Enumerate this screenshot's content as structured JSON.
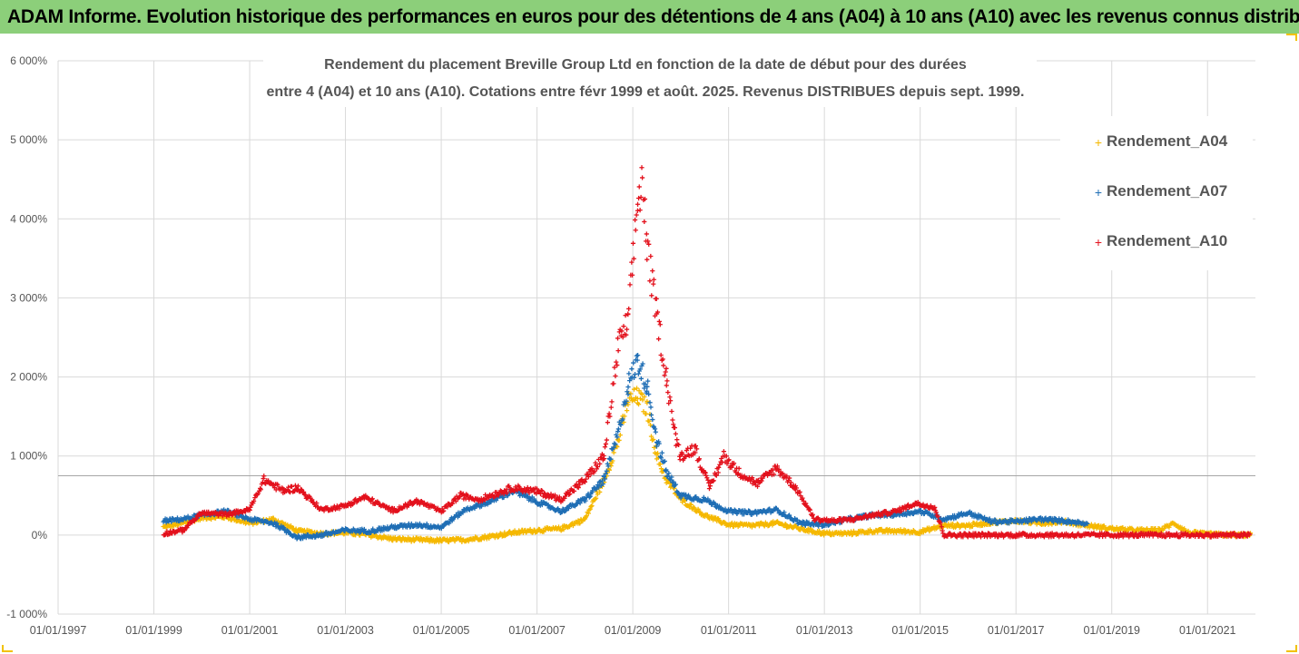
{
  "banner": {
    "text": "ADAM Informe. Evolution historique des performances en euros pour des détentions de 4 ans (A04) à 10 ans (A10) avec les revenus connus distribués"
  },
  "colors": {
    "banner_bg": "#8ccf7a",
    "A04": "#f5b800",
    "A07": "#1f6eb5",
    "A10": "#e3111c",
    "grid": "#d9d9d9",
    "frame_accent": "#f2c200"
  },
  "chart_data": {
    "type": "scatter",
    "title_lines": [
      "Rendement du placement Breville Group Ltd en fonction de la date de début pour des durées",
      "entre 4 (A04) et 10 ans (A10). Cotations entre févr 1999 et août. 2025. Revenus DISTRIBUES depuis sept. 1999."
    ],
    "y_ticks": [
      "6 000%",
      "5 000%",
      "4 000%",
      "3 000%",
      "2 000%",
      "1 000%",
      "0%",
      "-1 000%"
    ],
    "y_tick_values": [
      6000,
      5000,
      4000,
      3000,
      2000,
      1000,
      0,
      -1000
    ],
    "ylim": [
      -1000,
      6000
    ],
    "x_ticks": [
      "01/01/1997",
      "01/01/1999",
      "01/01/2001",
      "01/01/2003",
      "01/01/2005",
      "01/01/2007",
      "01/01/2009",
      "01/01/2011",
      "01/01/2013",
      "01/01/2015",
      "01/01/2017",
      "01/01/2019",
      "01/01/2021"
    ],
    "x_tick_years": [
      1997,
      1999,
      2001,
      2003,
      2005,
      2007,
      2009,
      2011,
      2013,
      2015,
      2017,
      2019,
      2021
    ],
    "xlim": [
      1997,
      2022
    ],
    "reference_line_y": 750,
    "grid": true,
    "legend_position": "right",
    "series": [
      {
        "name": "Rendement_A04",
        "color": "#f5b800",
        "points": [
          [
            1999.2,
            100
          ],
          [
            1999.6,
            150
          ],
          [
            2000.0,
            220
          ],
          [
            2000.5,
            230
          ],
          [
            2001.0,
            150
          ],
          [
            2001.5,
            200
          ],
          [
            2002.0,
            50
          ],
          [
            2002.5,
            20
          ],
          [
            2003.0,
            30
          ],
          [
            2003.5,
            0
          ],
          [
            2004.0,
            -50
          ],
          [
            2004.5,
            -60
          ],
          [
            2005.0,
            -70
          ],
          [
            2005.5,
            -60
          ],
          [
            2006.0,
            -20
          ],
          [
            2006.5,
            30
          ],
          [
            2007.0,
            60
          ],
          [
            2007.5,
            80
          ],
          [
            2008.0,
            200
          ],
          [
            2008.4,
            700
          ],
          [
            2008.7,
            1200
          ],
          [
            2008.9,
            1700
          ],
          [
            2009.1,
            1750
          ],
          [
            2009.3,
            1600
          ],
          [
            2009.5,
            1000
          ],
          [
            2009.7,
            700
          ],
          [
            2010.0,
            450
          ],
          [
            2010.5,
            250
          ],
          [
            2011.0,
            130
          ],
          [
            2011.5,
            120
          ],
          [
            2012.0,
            150
          ],
          [
            2012.5,
            80
          ],
          [
            2013.0,
            20
          ],
          [
            2013.5,
            20
          ],
          [
            2014.0,
            50
          ],
          [
            2014.5,
            50
          ],
          [
            2015.0,
            40
          ],
          [
            2015.5,
            120
          ],
          [
            2016.0,
            120
          ],
          [
            2016.5,
            160
          ],
          [
            2017.0,
            180
          ],
          [
            2017.5,
            150
          ],
          [
            2018.0,
            170
          ],
          [
            2018.5,
            120
          ],
          [
            2019.0,
            80
          ],
          [
            2019.5,
            60
          ],
          [
            2020.0,
            60
          ],
          [
            2020.3,
            150
          ],
          [
            2020.6,
            30
          ],
          [
            2021.0,
            10
          ],
          [
            2021.5,
            0
          ],
          [
            2021.9,
            0
          ]
        ]
      },
      {
        "name": "Rendement_A07",
        "color": "#1f6eb5",
        "points": [
          [
            1999.2,
            180
          ],
          [
            1999.6,
            200
          ],
          [
            2000.0,
            250
          ],
          [
            2000.5,
            300
          ],
          [
            2001.0,
            200
          ],
          [
            2001.5,
            150
          ],
          [
            2002.0,
            -30
          ],
          [
            2002.5,
            0
          ],
          [
            2003.0,
            60
          ],
          [
            2003.5,
            50
          ],
          [
            2004.0,
            100
          ],
          [
            2004.5,
            130
          ],
          [
            2005.0,
            100
          ],
          [
            2005.5,
            320
          ],
          [
            2006.0,
            420
          ],
          [
            2006.5,
            560
          ],
          [
            2007.0,
            420
          ],
          [
            2007.5,
            300
          ],
          [
            2008.0,
            450
          ],
          [
            2008.4,
            700
          ],
          [
            2008.7,
            1300
          ],
          [
            2008.9,
            1900
          ],
          [
            2009.1,
            2200
          ],
          [
            2009.3,
            1900
          ],
          [
            2009.5,
            1200
          ],
          [
            2009.7,
            800
          ],
          [
            2010.0,
            500
          ],
          [
            2010.5,
            450
          ],
          [
            2011.0,
            300
          ],
          [
            2011.5,
            280
          ],
          [
            2012.0,
            320
          ],
          [
            2012.5,
            150
          ],
          [
            2013.0,
            130
          ],
          [
            2013.5,
            200
          ],
          [
            2014.0,
            250
          ],
          [
            2014.5,
            260
          ],
          [
            2015.0,
            300
          ],
          [
            2015.5,
            200
          ],
          [
            2016.0,
            280
          ],
          [
            2016.5,
            170
          ],
          [
            2017.0,
            170
          ],
          [
            2017.5,
            200
          ],
          [
            2018.0,
            180
          ],
          [
            2018.5,
            140
          ]
        ]
      },
      {
        "name": "Rendement_A10",
        "color": "#e3111c",
        "points": [
          [
            1999.2,
            20
          ],
          [
            1999.6,
            60
          ],
          [
            2000.0,
            280
          ],
          [
            2000.5,
            260
          ],
          [
            2001.0,
            320
          ],
          [
            2001.3,
            700
          ],
          [
            2001.7,
            560
          ],
          [
            2002.0,
            600
          ],
          [
            2002.5,
            320
          ],
          [
            2003.0,
            370
          ],
          [
            2003.4,
            480
          ],
          [
            2003.8,
            360
          ],
          [
            2004.0,
            310
          ],
          [
            2004.5,
            430
          ],
          [
            2005.0,
            300
          ],
          [
            2005.4,
            500
          ],
          [
            2005.8,
            450
          ],
          [
            2006.5,
            600
          ],
          [
            2007.0,
            550
          ],
          [
            2007.5,
            450
          ],
          [
            2008.0,
            700
          ],
          [
            2008.4,
            1000
          ],
          [
            2008.7,
            2400
          ],
          [
            2008.9,
            2700
          ],
          [
            2009.1,
            4200
          ],
          [
            2009.2,
            4500
          ],
          [
            2009.3,
            3600
          ],
          [
            2009.5,
            2800
          ],
          [
            2009.7,
            2000
          ],
          [
            2009.9,
            1200
          ],
          [
            2010.0,
            1000
          ],
          [
            2010.3,
            1100
          ],
          [
            2010.6,
            600
          ],
          [
            2010.9,
            1000
          ],
          [
            2011.2,
            800
          ],
          [
            2011.6,
            650
          ],
          [
            2012.0,
            850
          ],
          [
            2012.4,
            600
          ],
          [
            2012.8,
            200
          ],
          [
            2013.2,
            180
          ],
          [
            2013.6,
            200
          ],
          [
            2014.0,
            250
          ],
          [
            2014.5,
            300
          ],
          [
            2014.9,
            400
          ],
          [
            2015.3,
            350
          ],
          [
            2015.5,
            0
          ],
          [
            2016.0,
            0
          ],
          [
            2017.0,
            0
          ],
          [
            2018.0,
            0
          ],
          [
            2019.0,
            0
          ],
          [
            2020.0,
            0
          ],
          [
            2021.0,
            0
          ],
          [
            2021.9,
            0
          ]
        ]
      }
    ]
  }
}
